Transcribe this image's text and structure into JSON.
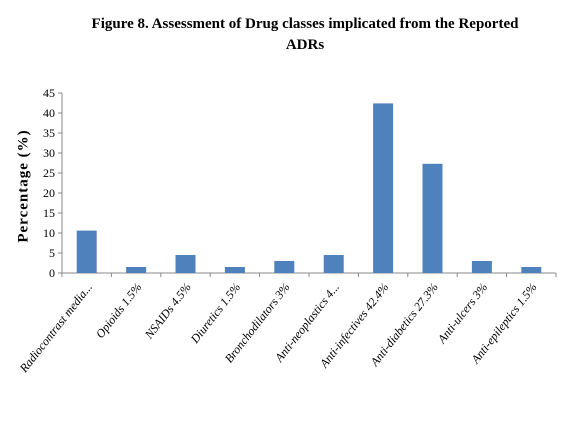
{
  "title_line1": "Figure 8. Assessment of Drug classes implicated from the Reported",
  "title_line2": "ADRs",
  "chart_data": {
    "type": "bar",
    "title": "Figure 8. Assessment of Drug classes implicated from the Reported ADRs",
    "xlabel": "",
    "ylabel": "Percentage (%)",
    "ylim": [
      0,
      45
    ],
    "yticks": [
      0,
      5,
      10,
      15,
      20,
      25,
      30,
      35,
      40,
      45
    ],
    "grid": false,
    "legend": "none",
    "bar_color": "#4f81bd",
    "categories": [
      "Radiocontrast media...",
      "Opioids 1.5%",
      "NSAIDs 4.5%",
      "Diuretics 1.5%",
      "Bronchodilators 3%",
      "Anti-neoplastics 4...",
      "Anti-infectives 42.4%",
      "Anti-diabetics 27.3%",
      "Anti-ulcers 3%",
      "Anti-epileptics 1.5%"
    ],
    "values": [
      10.6,
      1.5,
      4.5,
      1.5,
      3,
      4.5,
      42.4,
      27.3,
      3,
      1.5
    ]
  }
}
